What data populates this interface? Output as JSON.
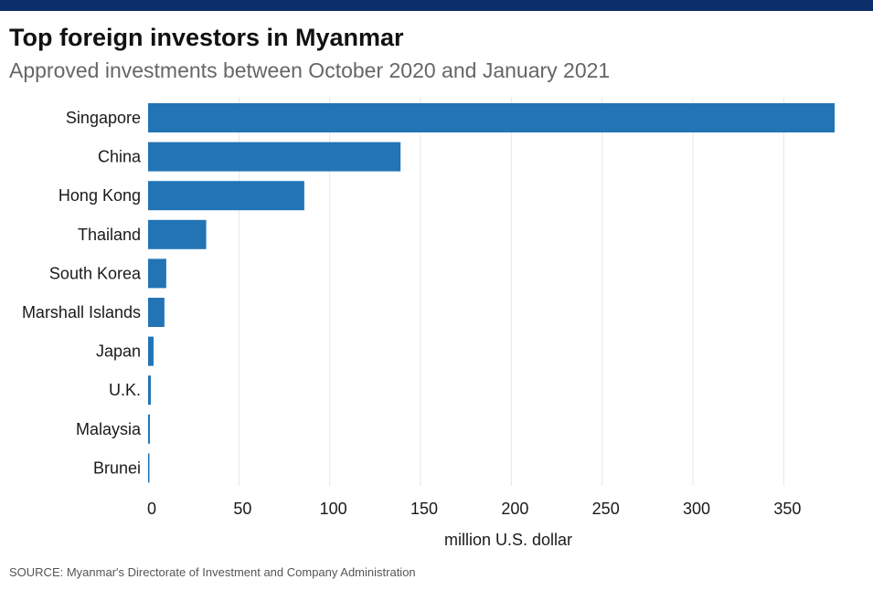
{
  "header": {
    "title": "Top foreign investors in Myanmar",
    "subtitle": "Approved investments between October 2020 and January 2021"
  },
  "footer": {
    "source": "SOURCE: Myanmar's Directorate of Investment and Company Administration"
  },
  "colors": {
    "bar": "#2274b5",
    "grid": "#e6e6e6",
    "top_bar": "#0c2f6b"
  },
  "chart_data": {
    "type": "bar",
    "orientation": "horizontal",
    "title": "Top foreign investors in Myanmar",
    "subtitle": "Approved investments between October 2020 and January 2021",
    "categories": [
      "Singapore",
      "China",
      "Hong Kong",
      "Thailand",
      "South Korea",
      "Marshall Islands",
      "Japan",
      "U.K.",
      "Malaysia",
      "Brunei"
    ],
    "values": [
      378,
      139,
      86,
      32,
      10,
      9,
      3,
      1.5,
      1,
      0.3
    ],
    "xlabel": "million U.S. dollar",
    "ylabel": "",
    "xlim": [
      0,
      380
    ],
    "xticks": [
      0,
      50,
      100,
      150,
      200,
      250,
      300,
      350
    ],
    "grid": true,
    "legend": "none"
  }
}
